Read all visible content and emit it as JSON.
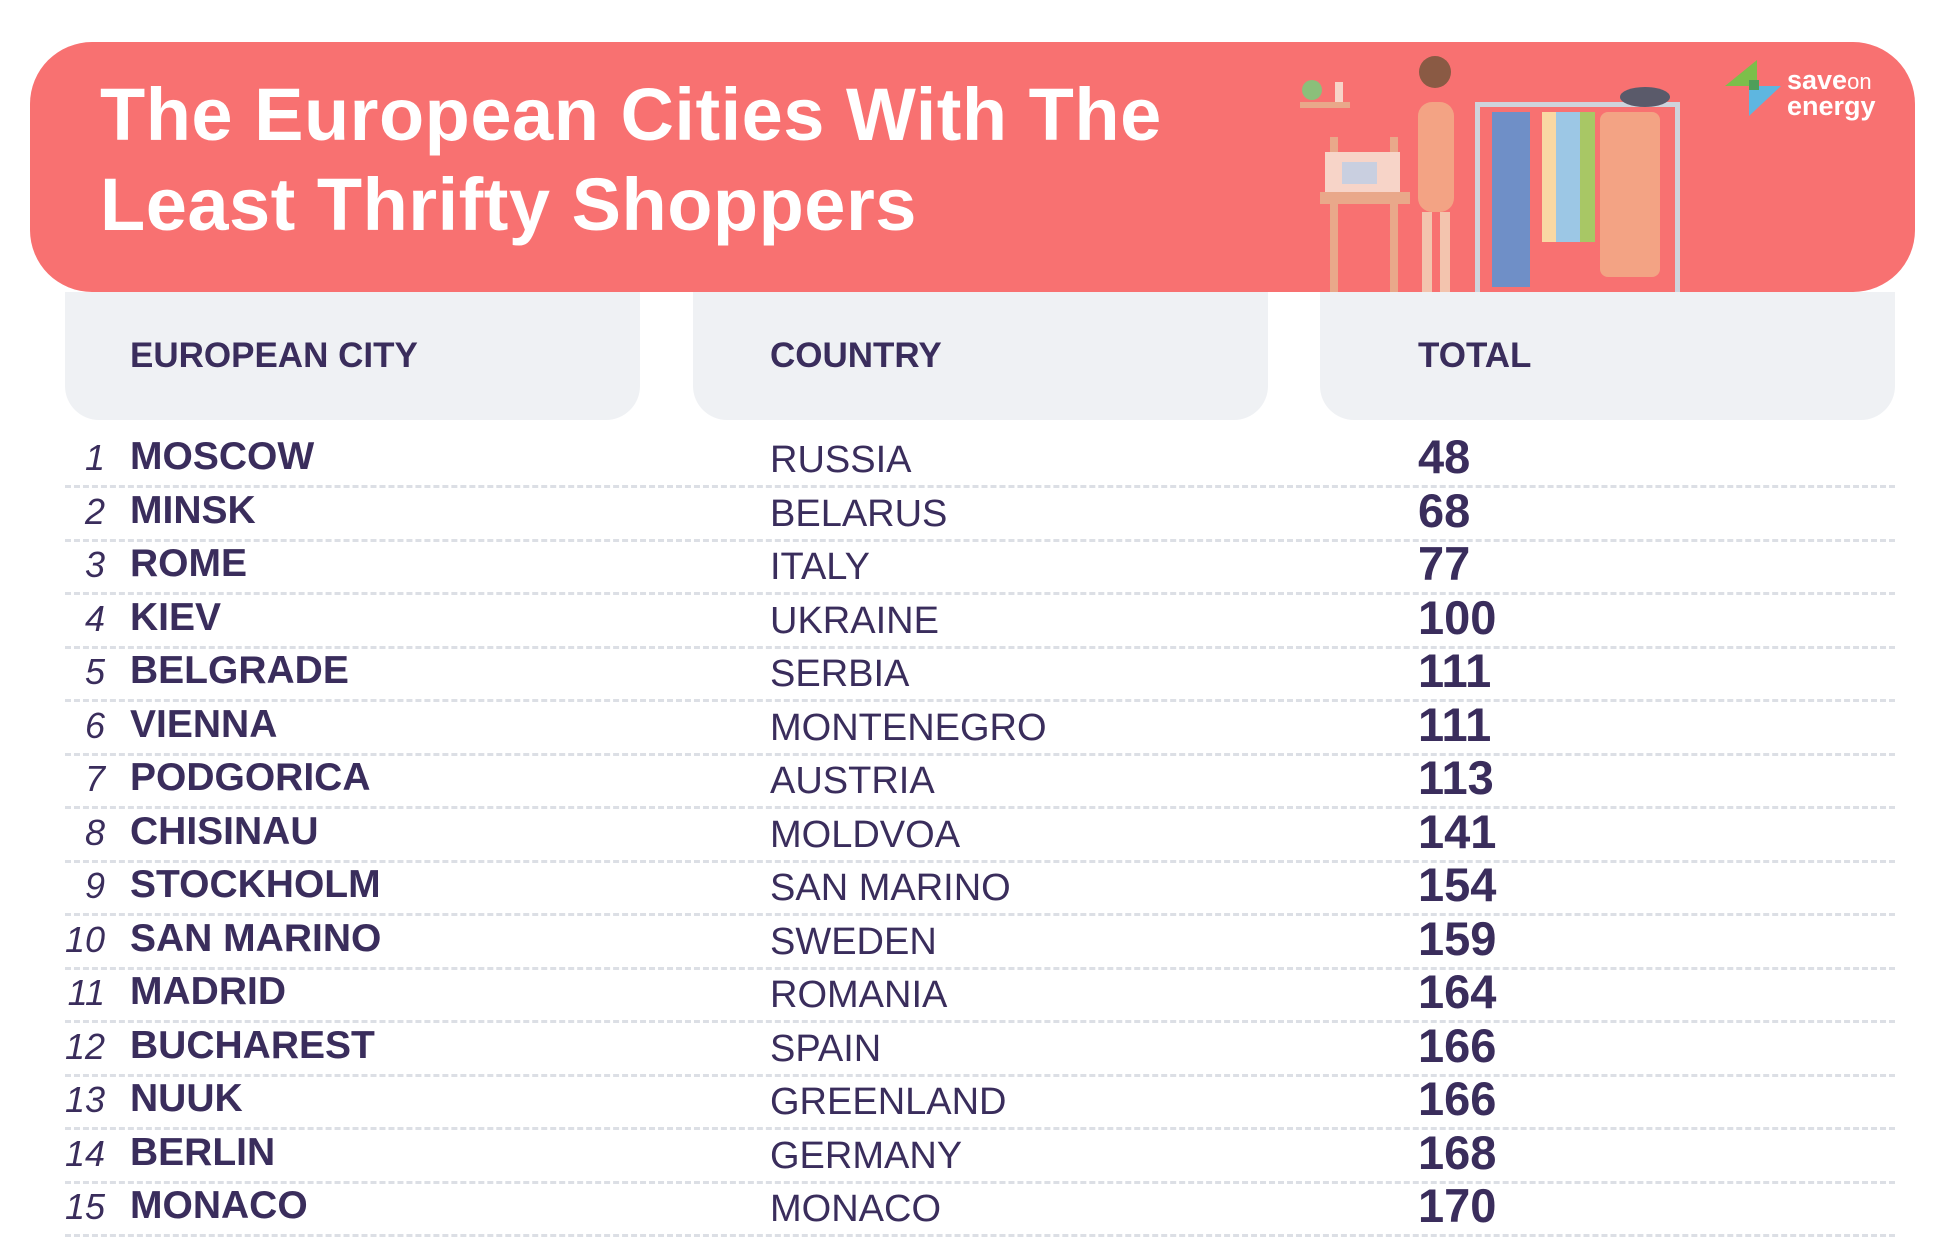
{
  "title_line1": "The European Cities With The",
  "title_line2": "Least Thrifty Shoppers",
  "logo": {
    "word1": "save",
    "word2": "on",
    "word3": "energy"
  },
  "colors": {
    "banner": "#f87171",
    "text": "#3a2d5c",
    "header_bg": "#eff1f4"
  },
  "headers": {
    "city": "EUROPEAN CITY",
    "country": "COUNTRY",
    "total": "TOTAL"
  },
  "rows": [
    {
      "rank": "1",
      "city": "MOSCOW",
      "country": "RUSSIA",
      "total": "48"
    },
    {
      "rank": "2",
      "city": "MINSK",
      "country": "BELARUS",
      "total": "68"
    },
    {
      "rank": "3",
      "city": "ROME",
      "country": "ITALY",
      "total": "77"
    },
    {
      "rank": "4",
      "city": "KIEV",
      "country": "UKRAINE",
      "total": "100"
    },
    {
      "rank": "5",
      "city": "BELGRADE",
      "country": "SERBIA",
      "total": "111"
    },
    {
      "rank": "6",
      "city": "VIENNA",
      "country": "MONTENEGRO",
      "total": "111"
    },
    {
      "rank": "7",
      "city": "PODGORICA",
      "country": "AUSTRIA",
      "total": "113"
    },
    {
      "rank": "8",
      "city": "CHISINAU",
      "country": "MOLDVOA",
      "total": "141"
    },
    {
      "rank": "9",
      "city": "STOCKHOLM",
      "country": "SAN MARINO",
      "total": "154"
    },
    {
      "rank": "10",
      "city": "SAN MARINO",
      "country": "SWEDEN",
      "total": "159"
    },
    {
      "rank": "11",
      "city": "MADRID",
      "country": "ROMANIA",
      "total": "164"
    },
    {
      "rank": "12",
      "city": "BUCHAREST",
      "country": "SPAIN",
      "total": "166"
    },
    {
      "rank": "13",
      "city": "NUUK",
      "country": "GREENLAND",
      "total": "166"
    },
    {
      "rank": "14",
      "city": "BERLIN",
      "country": "GERMANY",
      "total": "168"
    },
    {
      "rank": "15",
      "city": "MONACO",
      "country": "MONACO",
      "total": "170"
    }
  ]
}
